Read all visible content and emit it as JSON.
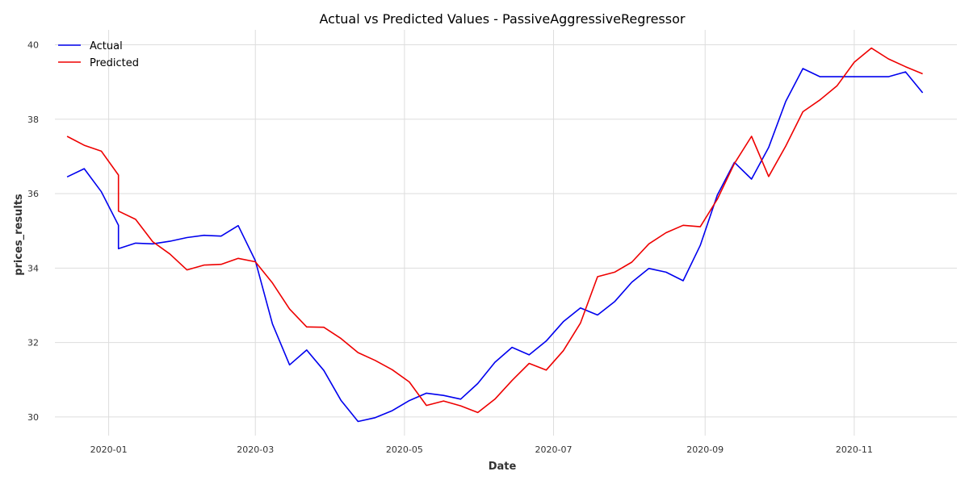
{
  "chart_data": {
    "type": "line",
    "title": "Actual vs Predicted Values - PassiveAggressiveRegressor",
    "xlabel": "Date",
    "ylabel": "prices_results",
    "xlim": [
      "2019-12-10",
      "2020-12-13"
    ],
    "ylim": [
      29.5,
      40.4
    ],
    "x_ticks": [
      "2020-01",
      "2020-03",
      "2020-05",
      "2020-07",
      "2020-09",
      "2020-11"
    ],
    "y_ticks": [
      30,
      32,
      34,
      36,
      38,
      40
    ],
    "grid": true,
    "legend_position": "top-left",
    "x": [
      "2019-12-15",
      "2019-12-22",
      "2019-12-29",
      "2020-01-05",
      "2020-01-05",
      "2020-01-12",
      "2020-01-19",
      "2020-01-26",
      "2020-02-02",
      "2020-02-09",
      "2020-02-16",
      "2020-02-23",
      "2020-03-01",
      "2020-03-08",
      "2020-03-15",
      "2020-03-22",
      "2020-03-29",
      "2020-04-05",
      "2020-04-12",
      "2020-04-19",
      "2020-04-26",
      "2020-05-03",
      "2020-05-10",
      "2020-05-17",
      "2020-05-24",
      "2020-05-31",
      "2020-06-07",
      "2020-06-14",
      "2020-06-21",
      "2020-06-28",
      "2020-07-05",
      "2020-07-12",
      "2020-07-19",
      "2020-07-26",
      "2020-08-02",
      "2020-08-09",
      "2020-08-16",
      "2020-08-23",
      "2020-08-30",
      "2020-09-06",
      "2020-09-13",
      "2020-09-20",
      "2020-09-27",
      "2020-10-04",
      "2020-10-11",
      "2020-10-18",
      "2020-10-25",
      "2020-11-01",
      "2020-11-08",
      "2020-11-15",
      "2020-11-22",
      "2020-11-29"
    ],
    "series": [
      {
        "name": "Actual",
        "color": "#0000ee",
        "values": [
          36.45,
          36.67,
          36.05,
          35.15,
          34.52,
          34.67,
          34.65,
          34.72,
          34.82,
          34.88,
          34.86,
          35.14,
          34.2,
          32.5,
          31.4,
          31.8,
          31.25,
          30.45,
          29.88,
          29.98,
          30.17,
          30.44,
          30.64,
          30.58,
          30.48,
          30.9,
          31.47,
          31.87,
          31.67,
          32.04,
          32.56,
          32.93,
          32.74,
          33.1,
          33.62,
          33.99,
          33.89,
          33.66,
          34.61,
          35.96,
          36.84,
          36.39,
          37.24,
          38.48,
          39.36,
          39.14,
          39.14,
          39.14,
          39.14,
          39.14,
          39.27,
          38.71
        ]
      },
      {
        "name": "Predicted",
        "color": "#ee0000",
        "values": [
          37.54,
          37.3,
          37.14,
          36.5,
          35.53,
          35.31,
          34.71,
          34.38,
          33.95,
          34.08,
          34.1,
          34.26,
          34.17,
          33.6,
          32.9,
          32.42,
          32.41,
          32.11,
          31.73,
          31.52,
          31.27,
          30.94,
          30.31,
          30.43,
          30.3,
          30.12,
          30.48,
          30.98,
          31.44,
          31.26,
          31.78,
          32.52,
          33.77,
          33.89,
          34.16,
          34.65,
          34.95,
          35.15,
          35.11,
          35.85,
          36.81,
          37.54,
          36.46,
          37.28,
          38.2,
          38.52,
          38.9,
          39.53,
          39.91,
          39.62,
          39.41,
          39.22
        ]
      }
    ]
  }
}
